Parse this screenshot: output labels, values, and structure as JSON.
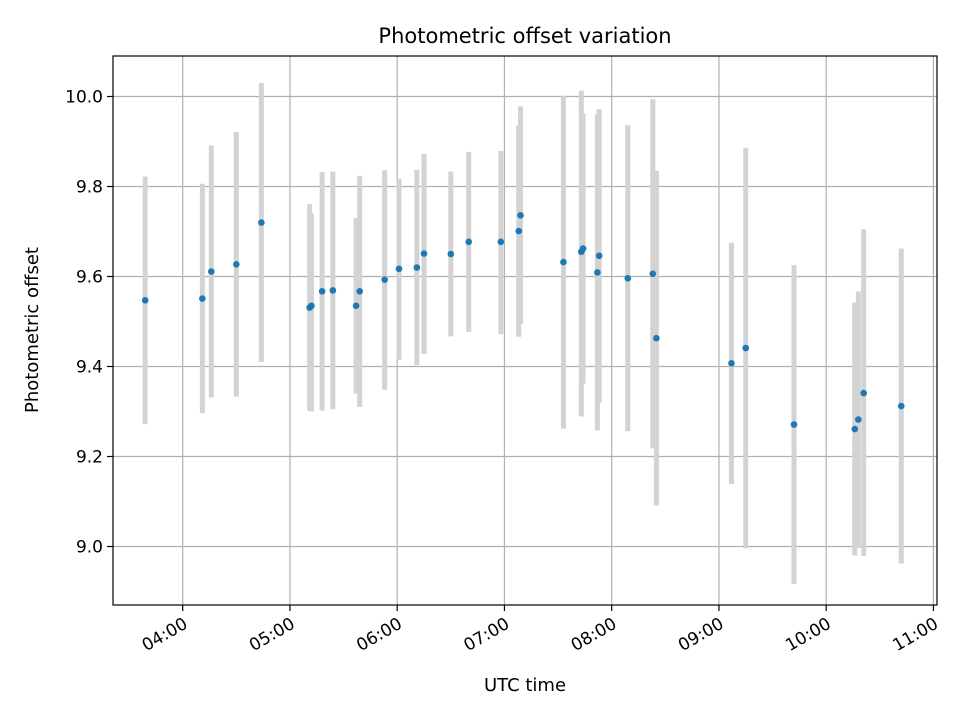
{
  "chart_data": {
    "type": "scatter",
    "title": "Photometric offset variation",
    "xlabel": "UTC time",
    "ylabel": "Photometric offset",
    "x_ticks": [
      "04:00",
      "05:00",
      "06:00",
      "07:00",
      "08:00",
      "09:00",
      "10:00",
      "11:00"
    ],
    "y_ticks": [
      "9.0",
      "9.2",
      "9.4",
      "9.6",
      "9.8",
      "10.0"
    ],
    "xlim": [
      "03:21",
      "11:02"
    ],
    "ylim": [
      8.87,
      10.09
    ],
    "grid": true,
    "marker_color": "#1f77b4",
    "errorbar_color": "#d3d3d3",
    "points": [
      {
        "x": "03:39",
        "y": 9.547,
        "lo": 9.272,
        "hi": 9.822
      },
      {
        "x": "04:11",
        "y": 9.551,
        "lo": 9.296,
        "hi": 9.806
      },
      {
        "x": "04:16",
        "y": 9.611,
        "lo": 9.331,
        "hi": 9.891
      },
      {
        "x": "04:30",
        "y": 9.627,
        "lo": 9.333,
        "hi": 9.921
      },
      {
        "x": "04:44",
        "y": 9.72,
        "lo": 9.41,
        "hi": 10.03
      },
      {
        "x": "05:11",
        "y": 9.531,
        "lo": 9.301,
        "hi": 9.761
      },
      {
        "x": "05:12",
        "y": 9.535,
        "lo": 9.3,
        "hi": 9.74
      },
      {
        "x": "05:18",
        "y": 9.567,
        "lo": 9.302,
        "hi": 9.832
      },
      {
        "x": "05:24",
        "y": 9.569,
        "lo": 9.305,
        "hi": 9.833
      },
      {
        "x": "05:37",
        "y": 9.535,
        "lo": 9.34,
        "hi": 9.73
      },
      {
        "x": "05:39",
        "y": 9.567,
        "lo": 9.31,
        "hi": 9.824
      },
      {
        "x": "05:53",
        "y": 9.593,
        "lo": 9.348,
        "hi": 9.836
      },
      {
        "x": "06:01",
        "y": 9.617,
        "lo": 9.415,
        "hi": 9.817
      },
      {
        "x": "06:11",
        "y": 9.62,
        "lo": 9.403,
        "hi": 9.837
      },
      {
        "x": "06:15",
        "y": 9.651,
        "lo": 9.428,
        "hi": 9.872
      },
      {
        "x": "06:30",
        "y": 9.65,
        "lo": 9.467,
        "hi": 9.833
      },
      {
        "x": "06:40",
        "y": 9.677,
        "lo": 9.477,
        "hi": 9.877
      },
      {
        "x": "06:58",
        "y": 9.677,
        "lo": 9.472,
        "hi": 9.879
      },
      {
        "x": "07:08",
        "y": 9.701,
        "lo": 9.466,
        "hi": 9.936
      },
      {
        "x": "07:09",
        "y": 9.736,
        "lo": 9.494,
        "hi": 9.978
      },
      {
        "x": "07:33",
        "y": 9.632,
        "lo": 9.262,
        "hi": 10.002
      },
      {
        "x": "07:43",
        "y": 9.655,
        "lo": 9.289,
        "hi": 10.013
      },
      {
        "x": "07:44",
        "y": 9.662,
        "lo": 9.362,
        "hi": 9.962
      },
      {
        "x": "07:52",
        "y": 9.609,
        "lo": 9.258,
        "hi": 9.96
      },
      {
        "x": "07:53",
        "y": 9.646,
        "lo": 9.32,
        "hi": 9.972
      },
      {
        "x": "08:09",
        "y": 9.596,
        "lo": 9.256,
        "hi": 9.936
      },
      {
        "x": "08:23",
        "y": 9.606,
        "lo": 9.218,
        "hi": 9.994
      },
      {
        "x": "08:25",
        "y": 9.463,
        "lo": 9.091,
        "hi": 9.835
      },
      {
        "x": "09:07",
        "y": 9.407,
        "lo": 9.139,
        "hi": 9.675
      },
      {
        "x": "09:15",
        "y": 9.441,
        "lo": 8.996,
        "hi": 9.886
      },
      {
        "x": "09:42",
        "y": 9.271,
        "lo": 8.917,
        "hi": 9.625
      },
      {
        "x": "10:16",
        "y": 9.261,
        "lo": 8.98,
        "hi": 9.542
      },
      {
        "x": "10:18",
        "y": 9.282,
        "lo": 8.997,
        "hi": 9.567
      },
      {
        "x": "10:21",
        "y": 9.341,
        "lo": 8.979,
        "hi": 9.705
      },
      {
        "x": "10:42",
        "y": 9.312,
        "lo": 8.962,
        "hi": 9.662
      }
    ]
  }
}
